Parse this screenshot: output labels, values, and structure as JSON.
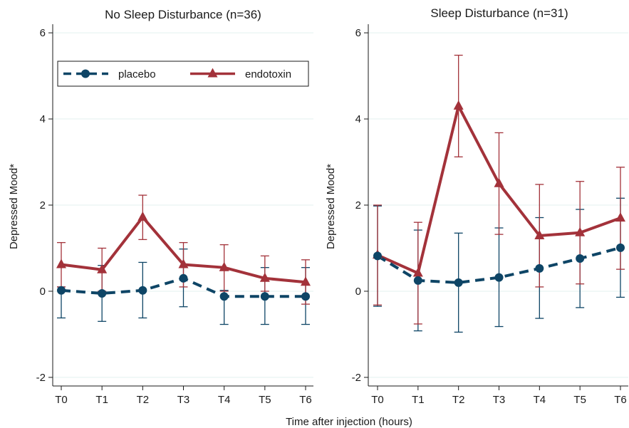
{
  "chart_data": [
    {
      "type": "line",
      "title": "No Sleep Disturbance (n=36)",
      "ylabel": "Depressed Mood*",
      "ylim": [
        -2.2,
        6.2
      ],
      "yticks": [
        -2,
        0,
        2,
        4,
        6
      ],
      "categories": [
        "T0",
        "T1",
        "T2",
        "T3",
        "T4",
        "T5",
        "T6"
      ],
      "grid": true,
      "legend": "top",
      "series": [
        {
          "name": "placebo",
          "marker": "circle",
          "line": "dashed",
          "values": [
            0.02,
            -0.05,
            0.02,
            0.3,
            -0.12,
            -0.12,
            -0.12
          ],
          "error_low": [
            -0.62,
            -0.7,
            -0.62,
            -0.36,
            -0.77,
            -0.77,
            -0.77
          ],
          "error_high": [
            0.1,
            0.6,
            0.67,
            0.98,
            0.02,
            0.55,
            0.55
          ]
        },
        {
          "name": "endotoxin",
          "marker": "triangle",
          "line": "solid",
          "values": [
            0.62,
            0.5,
            1.72,
            0.62,
            0.55,
            0.3,
            0.21
          ],
          "error_low": [
            0.1,
            0.0,
            1.2,
            0.1,
            0.0,
            0.0,
            -0.3
          ],
          "error_high": [
            1.13,
            1.0,
            2.23,
            1.13,
            1.08,
            0.82,
            0.73
          ]
        }
      ]
    },
    {
      "type": "line",
      "title": "Sleep Disturbance (n=31)",
      "ylabel": "Depressed Mood*",
      "ylim": [
        -2.2,
        6.2
      ],
      "yticks": [
        -2,
        0,
        2,
        4,
        6
      ],
      "categories": [
        "T0",
        "T1",
        "T2",
        "T3",
        "T4",
        "T5",
        "T6"
      ],
      "grid": true,
      "series": [
        {
          "name": "placebo",
          "marker": "circle",
          "line": "dashed",
          "values": [
            0.82,
            0.25,
            0.2,
            0.32,
            0.53,
            0.76,
            1.01
          ],
          "error_low": [
            -0.35,
            -0.92,
            -0.95,
            -0.82,
            -0.63,
            -0.38,
            -0.14
          ],
          "error_high": [
            1.98,
            1.42,
            1.35,
            1.47,
            1.71,
            1.9,
            2.16
          ]
        },
        {
          "name": "endotoxin",
          "marker": "triangle",
          "line": "solid",
          "values": [
            0.84,
            0.42,
            4.3,
            2.5,
            1.29,
            1.36,
            1.7
          ],
          "error_low": [
            -0.32,
            -0.76,
            3.12,
            1.32,
            0.1,
            0.17,
            0.51
          ],
          "error_high": [
            2.0,
            1.6,
            5.48,
            3.68,
            2.48,
            2.55,
            2.88
          ]
        }
      ]
    }
  ],
  "xlabel": "Time after injection (hours)",
  "colors": {
    "placebo": "#0e4566",
    "endotoxin": "#a3323a",
    "grid": "#e3f0ef"
  }
}
